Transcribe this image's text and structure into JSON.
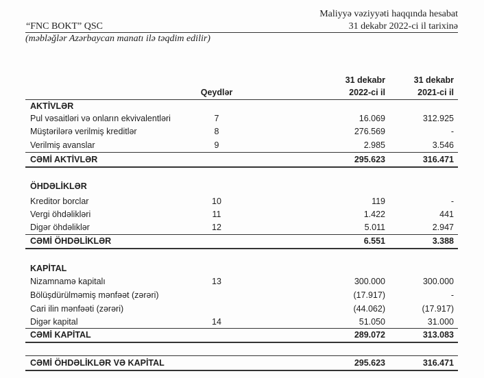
{
  "header": {
    "report_title": "Maliyyə vəziyyəti haqqında hesabat",
    "report_date": "31 dekabr 2022-ci il tarixinə",
    "company": "“FNC BOKT” QSC",
    "subtitle": "(məbləğlər Azərbaycan manatı ilə təqdim edilir)"
  },
  "columns": {
    "notes": "Qeydlər",
    "c1_line1": "31 dekabr",
    "c1_line2": "2022-ci il",
    "c2_line1": "31 dekabr",
    "c2_line2": "2021-ci il"
  },
  "assets": {
    "heading": "AKTİVLƏR",
    "rows": [
      {
        "label": "Pul vəsaitləri və onların ekvivalentləri",
        "note": "7",
        "y2022": "16.069",
        "y2021": "312.925"
      },
      {
        "label": "Müştərilərə verilmiş kreditlər",
        "note": "8",
        "y2022": "276.569",
        "y2021": "-"
      },
      {
        "label": "Verilmiş avanslar",
        "note": "9",
        "y2022": "2.985",
        "y2021": "3.546"
      }
    ],
    "total": {
      "label": "CƏMİ AKTİVLƏR",
      "y2022": "295.623",
      "y2021": "316.471"
    }
  },
  "liabilities": {
    "heading": "ÖHDƏLİKLƏR",
    "rows": [
      {
        "label": "Kreditor borclar",
        "note": "10",
        "y2022": "119",
        "y2021": "-"
      },
      {
        "label": "Vergi öhdəlikləri",
        "note": "11",
        "y2022": "1.422",
        "y2021": "441"
      },
      {
        "label": "Digər öhdəliklər",
        "note": "12",
        "y2022": "5.011",
        "y2021": "2.947"
      }
    ],
    "total": {
      "label": "CƏMİ ÖHDƏLİKLƏR",
      "y2022": "6.551",
      "y2021": "3.388"
    }
  },
  "equity": {
    "heading": "KAPİTAL",
    "rows": [
      {
        "label": "Nizamnamə kapitalı",
        "note": "13",
        "y2022": "300.000",
        "y2021": "300.000"
      },
      {
        "label": "Bölüşdürülməmiş mənfəət (zərəri)",
        "note": "",
        "y2022": "(17.917)",
        "y2021": "-"
      },
      {
        "label": "Cari ilin mənfəəti (zərəri)",
        "note": "",
        "y2022": "(44.062)",
        "y2021": "(17.917)"
      },
      {
        "label": "Digər kapital",
        "note": "14",
        "y2022": "51.050",
        "y2021": "31.000"
      }
    ],
    "total": {
      "label": "CƏMİ KAPİTAL",
      "y2022": "289.072",
      "y2021": "313.083"
    }
  },
  "grand_total": {
    "label": "CƏMİ ÖHDƏLİKLƏR VƏ KAPİTAL",
    "y2022": "295.623",
    "y2021": "316.471"
  }
}
